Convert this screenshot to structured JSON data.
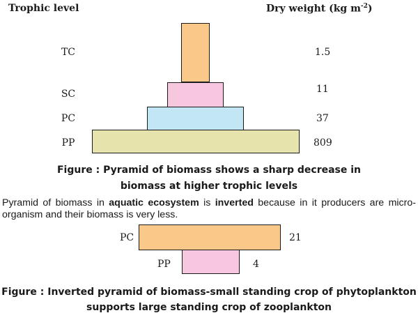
{
  "header": {
    "trophic_level_label": "Trophic level",
    "dry_weight_label": "Dry weight (kg m",
    "dry_weight_exp": "-2",
    "dry_weight_close": ")"
  },
  "pyramid1": {
    "levels": [
      {
        "level": "TC",
        "value": "1.5",
        "color": "#fac98a"
      },
      {
        "level": "SC",
        "value": "11",
        "color": "#f7c6df"
      },
      {
        "level": "PC",
        "value": "37",
        "color": "#c3e6f5"
      },
      {
        "level": "PP",
        "value": "809",
        "color": "#e7e3ad"
      }
    ],
    "caption_line1": "Figure : Pyramid of biomass shows a sharp decrease in",
    "caption_line2": "biomass at higher trophic levels"
  },
  "paragraph": {
    "part1": "Pyramid of biomass in ",
    "bold1": "aquatic ecosystem",
    "part2": " is ",
    "bold2": "inverted",
    "part3": " because in it producers are micro-organism and their biomass is very less."
  },
  "pyramid2": {
    "levels": [
      {
        "level": "PC",
        "value": "21",
        "color": "#fac98a"
      },
      {
        "level": "PP",
        "value": "4",
        "color": "#f7c6df"
      }
    ],
    "caption_line1": "Figure : Inverted pyramid of biomass-small standing crop of phytoplankton",
    "caption_line2": "supports large standing crop of zooplankton"
  }
}
